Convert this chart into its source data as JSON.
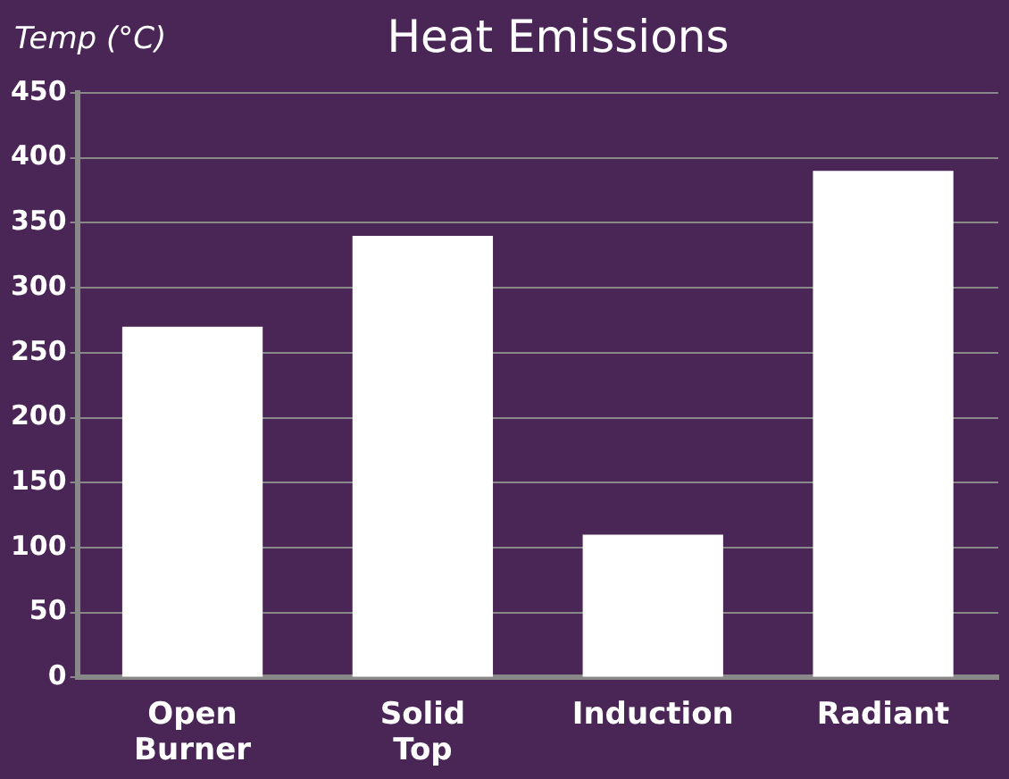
{
  "chart_data": {
    "type": "bar",
    "title": "Heat Emissions",
    "ylabel": "Temp (°C)",
    "categories": [
      "Open Burner",
      "Solid Top",
      "Induction",
      "Radiant"
    ],
    "values": [
      270,
      340,
      110,
      390
    ],
    "color": "#ffffff",
    "ylim": [
      0,
      450
    ],
    "yticks": [
      0,
      50,
      100,
      150,
      200,
      250,
      300,
      350,
      400,
      450
    ],
    "grid": "y"
  }
}
